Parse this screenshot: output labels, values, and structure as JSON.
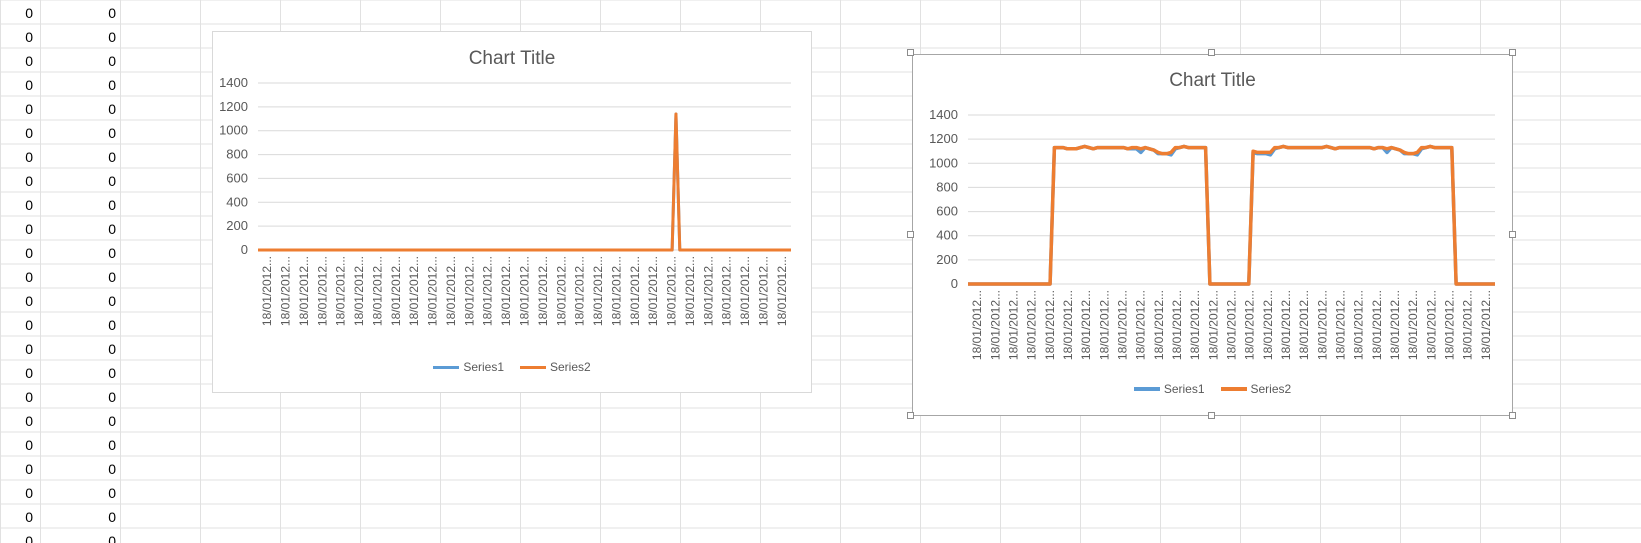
{
  "sheet": {
    "col_a_values": [
      "0",
      "0",
      "0",
      "0",
      "0",
      "0",
      "0",
      "0",
      "0",
      "0",
      "0",
      "0",
      "0",
      "0",
      "0",
      "0",
      "0",
      "0",
      "0",
      "0",
      "0",
      "0",
      "0"
    ],
    "col_b_values": [
      "0",
      "0",
      "0",
      "0",
      "0",
      "0",
      "0",
      "0",
      "0",
      "0",
      "0",
      "0",
      "0",
      "0",
      "0",
      "0",
      "0",
      "0",
      "0",
      "0",
      "0",
      "0",
      "0"
    ]
  },
  "colors": {
    "grid": "#d9d9d9",
    "series1": "#5b9bd5",
    "series2": "#ed7d31",
    "text": "#595959"
  },
  "chart_data": [
    {
      "type": "line",
      "title": "Chart Title",
      "x_tick_labels": [
        "18/01/2012...",
        "18/01/2012...",
        "18/01/2012...",
        "18/01/2012...",
        "18/01/2012...",
        "18/01/2012...",
        "18/01/2012...",
        "18/01/2012...",
        "18/01/2012...",
        "18/01/2012...",
        "18/01/2012...",
        "18/01/2012...",
        "18/01/2012...",
        "18/01/2012...",
        "18/01/2012...",
        "18/01/2012...",
        "18/01/2012...",
        "18/01/2012...",
        "18/01/2012...",
        "18/01/2012...",
        "18/01/2012...",
        "18/01/2012...",
        "18/01/2012...",
        "18/01/2012...",
        "18/01/2012...",
        "18/01/2012...",
        "18/01/2012...",
        "18/01/2012...",
        "18/01/2012..."
      ],
      "ylim": [
        0,
        1400
      ],
      "yticks": [
        0,
        200,
        400,
        600,
        800,
        1000,
        1200,
        1400
      ],
      "grid": true,
      "legend": "bottom",
      "series": [
        {
          "name": "Series1",
          "values": [
            0,
            0,
            0,
            0,
            0,
            0,
            0,
            0,
            0,
            0,
            0,
            0,
            0,
            0,
            0,
            0,
            0,
            0,
            0,
            0,
            0,
            0,
            0,
            0,
            0,
            0,
            0,
            0,
            0,
            0,
            0,
            0,
            0,
            0,
            0,
            0,
            0,
            0,
            0,
            0,
            0,
            0,
            0,
            0,
            0,
            0,
            0,
            0,
            0,
            0,
            0,
            0,
            0,
            0,
            0,
            0,
            0,
            0,
            0,
            0,
            0,
            0,
            0,
            0,
            0,
            0,
            0,
            0,
            0,
            0,
            0,
            0,
            0,
            0,
            0,
            0,
            0,
            0,
            0,
            0,
            0,
            0,
            0,
            0,
            0,
            0,
            0,
            0,
            0,
            0,
            0,
            0,
            0,
            0,
            0,
            0,
            0,
            0,
            0,
            0,
            0,
            0,
            0,
            0,
            0,
            0,
            0,
            0,
            0,
            1140,
            0,
            0,
            0,
            0,
            0,
            0,
            0,
            0,
            0,
            0,
            0,
            0,
            0,
            0,
            0,
            0,
            0,
            0,
            0,
            0,
            0,
            0,
            0,
            0,
            0,
            0,
            0,
            0,
            0,
            0
          ]
        },
        {
          "name": "Series2",
          "values": [
            0,
            0,
            0,
            0,
            0,
            0,
            0,
            0,
            0,
            0,
            0,
            0,
            0,
            0,
            0,
            0,
            0,
            0,
            0,
            0,
            0,
            0,
            0,
            0,
            0,
            0,
            0,
            0,
            0,
            0,
            0,
            0,
            0,
            0,
            0,
            0,
            0,
            0,
            0,
            0,
            0,
            0,
            0,
            0,
            0,
            0,
            0,
            0,
            0,
            0,
            0,
            0,
            0,
            0,
            0,
            0,
            0,
            0,
            0,
            0,
            0,
            0,
            0,
            0,
            0,
            0,
            0,
            0,
            0,
            0,
            0,
            0,
            0,
            0,
            0,
            0,
            0,
            0,
            0,
            0,
            0,
            0,
            0,
            0,
            0,
            0,
            0,
            0,
            0,
            0,
            0,
            0,
            0,
            0,
            0,
            0,
            0,
            0,
            0,
            0,
            0,
            0,
            0,
            0,
            0,
            0,
            0,
            0,
            0,
            1140,
            0,
            0,
            0,
            0,
            0,
            0,
            0,
            0,
            0,
            0,
            0,
            0,
            0,
            0,
            0,
            0,
            0,
            0,
            0,
            0,
            0,
            0,
            0,
            0,
            0,
            0,
            0,
            0,
            0,
            0
          ]
        }
      ]
    },
    {
      "type": "line",
      "title": "Chart Title",
      "x_tick_labels": [
        "18/01/2012...",
        "18/01/2012...",
        "18/01/2012...",
        "18/01/2012...",
        "18/01/2012...",
        "18/01/2012...",
        "18/01/2012...",
        "18/01/2012...",
        "18/01/2012...",
        "18/01/2012...",
        "18/01/2012...",
        "18/01/2012...",
        "18/01/2012...",
        "18/01/2012...",
        "18/01/2012...",
        "18/01/2012...",
        "18/01/2012...",
        "18/01/2012...",
        "18/01/2012...",
        "18/01/2012...",
        "18/01/2012...",
        "18/01/2012...",
        "18/01/2012...",
        "18/01/2012...",
        "18/01/2012...",
        "18/01/2012...",
        "18/01/2012...",
        "18/01/2012...",
        "18/01/2012..."
      ],
      "ylim": [
        0,
        1400
      ],
      "yticks": [
        0,
        200,
        400,
        600,
        800,
        1000,
        1200,
        1400
      ],
      "grid": true,
      "legend": "bottom",
      "series": [
        {
          "name": "Series1",
          "values": [
            0,
            0,
            0,
            0,
            0,
            0,
            0,
            0,
            0,
            0,
            0,
            0,
            0,
            0,
            0,
            0,
            0,
            0,
            0,
            0,
            1130,
            1130,
            1130,
            1120,
            1120,
            1120,
            1130,
            1140,
            1130,
            1120,
            1130,
            1130,
            1130,
            1130,
            1130,
            1130,
            1130,
            1120,
            1120,
            1120,
            1090,
            1130,
            1120,
            1110,
            1080,
            1080,
            1080,
            1070,
            1120,
            1130,
            1140,
            1130,
            1130,
            1130,
            1130,
            1130,
            0,
            0,
            0,
            0,
            0,
            0,
            0,
            0,
            0,
            0,
            1090,
            1080,
            1080,
            1080,
            1070,
            1120,
            1130,
            1140,
            1130,
            1130,
            1130,
            1130,
            1130,
            1130,
            1130,
            1130,
            1130,
            1140,
            1130,
            1120,
            1130,
            1130,
            1130,
            1130,
            1130,
            1130,
            1130,
            1130,
            1120,
            1130,
            1130,
            1090,
            1130,
            1120,
            1110,
            1080,
            1080,
            1080,
            1070,
            1120,
            1130,
            1140,
            1130,
            1130,
            1130,
            1130,
            1130,
            0,
            0,
            0,
            0,
            0,
            0,
            0,
            0,
            0,
            0
          ]
        },
        {
          "name": "Series2",
          "values": [
            0,
            0,
            0,
            0,
            0,
            0,
            0,
            0,
            0,
            0,
            0,
            0,
            0,
            0,
            0,
            0,
            0,
            0,
            0,
            0,
            1130,
            1130,
            1130,
            1120,
            1120,
            1120,
            1130,
            1140,
            1130,
            1120,
            1130,
            1130,
            1130,
            1130,
            1130,
            1130,
            1130,
            1120,
            1130,
            1130,
            1120,
            1130,
            1120,
            1110,
            1090,
            1080,
            1080,
            1090,
            1130,
            1130,
            1140,
            1130,
            1130,
            1130,
            1130,
            1130,
            0,
            0,
            0,
            0,
            0,
            0,
            0,
            0,
            0,
            0,
            1100,
            1090,
            1090,
            1090,
            1090,
            1130,
            1130,
            1140,
            1130,
            1130,
            1130,
            1130,
            1130,
            1130,
            1130,
            1130,
            1130,
            1140,
            1130,
            1120,
            1130,
            1130,
            1130,
            1130,
            1130,
            1130,
            1130,
            1130,
            1120,
            1130,
            1130,
            1120,
            1130,
            1120,
            1110,
            1090,
            1080,
            1080,
            1090,
            1130,
            1130,
            1140,
            1130,
            1130,
            1130,
            1130,
            1130,
            0,
            0,
            0,
            0,
            0,
            0,
            0,
            0,
            0,
            0
          ]
        }
      ]
    }
  ]
}
